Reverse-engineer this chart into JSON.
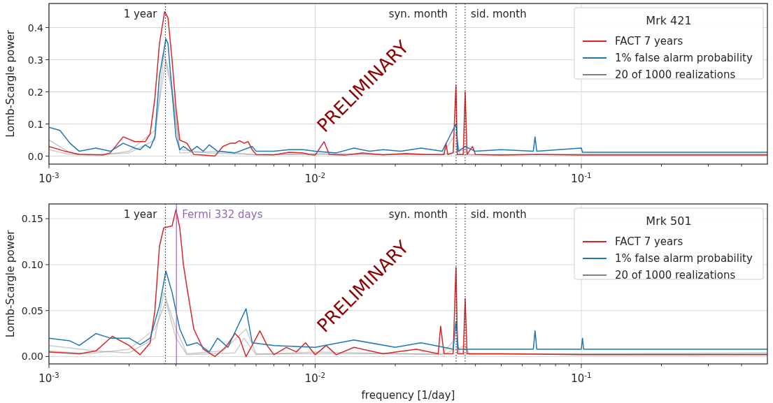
{
  "chart_data": [
    {
      "type": "line",
      "ylabel": "Lomb-Scargle power",
      "legend_title": "Mrk 421",
      "legend": "top right",
      "log": "x",
      "grid": true,
      "line_style": "solid",
      "xlim": [
        0.001,
        0.5
      ],
      "ylim": [
        -0.025,
        0.475
      ],
      "xticks": [
        {
          "value": 0.001,
          "label": "10$^{-3}$"
        },
        {
          "value": 0.002,
          "label": null
        },
        {
          "value": 0.003,
          "label": null
        },
        {
          "value": 0.004,
          "label": null
        },
        {
          "value": 0.005,
          "label": null
        },
        {
          "value": 0.006,
          "label": null
        },
        {
          "value": 0.007,
          "label": null
        },
        {
          "value": 0.008,
          "label": null
        },
        {
          "value": 0.009,
          "label": null
        },
        {
          "value": 0.01,
          "label": "10$^{-2}$"
        },
        {
          "value": 0.02,
          "label": null
        },
        {
          "value": 0.03,
          "label": null
        },
        {
          "value": 0.04,
          "label": null
        },
        {
          "value": 0.05,
          "label": null
        },
        {
          "value": 0.06,
          "label": null
        },
        {
          "value": 0.07,
          "label": null
        },
        {
          "value": 0.08,
          "label": null
        },
        {
          "value": 0.09,
          "label": null
        },
        {
          "value": 0.1,
          "label": "10$^{-1}$"
        },
        {
          "value": 0.2,
          "label": null
        },
        {
          "value": 0.3,
          "label": null
        },
        {
          "value": 0.4,
          "label": null
        }
      ],
      "yticks": [
        {
          "value": 0,
          "label": "0.0"
        },
        0.1,
        0.2,
        0.3,
        0.4
      ],
      "ref_lines": [
        {
          "axis": "x",
          "value": 0.002738,
          "label": "1 year",
          "color": "#333333",
          "line_style": "dotted"
        },
        {
          "axis": "x",
          "value": 0.03386,
          "label": "syn. month",
          "color": "#333333",
          "line_style": "dotted"
        },
        {
          "axis": "x",
          "value": 0.0366,
          "label": "sid. month",
          "color": "#333333",
          "line_style": "dotted"
        }
      ],
      "annotations": [
        "PRELIMINARY"
      ],
      "series": [
        {
          "name": "20 of 1000 realizations",
          "color": "#7f7f7f",
          "x": [
            0.001,
            0.0012,
            0.0015,
            0.002,
            0.0025,
            0.0027,
            0.0029,
            0.0031,
            0.004,
            0.006,
            0.01,
            0.03,
            0.0338,
            0.035,
            0.1,
            0.5
          ],
          "values": [
            0.05,
            0.01,
            0.005,
            0.01,
            0.05,
            0.32,
            0.2,
            0.02,
            0.01,
            0.005,
            0.005,
            0.005,
            0.07,
            0.005,
            0.005,
            0.005
          ]
        },
        {
          "color": "#7f7f7f",
          "x": [
            0.001,
            0.0012,
            0.0016,
            0.002,
            0.0025,
            0.00275,
            0.0029,
            0.0031,
            0.0045,
            0.006,
            0.01,
            0.03,
            0.0366,
            0.038,
            0.1,
            0.5
          ],
          "values": [
            0.02,
            0.005,
            0.003,
            0.015,
            0.08,
            0.3,
            0.22,
            0.01,
            0.015,
            0.003,
            0.008,
            0.004,
            0.02,
            0.004,
            0.006,
            0.006
          ]
        },
        {
          "name": "FACT 7 years",
          "color": "#d62728",
          "x": [
            0.001,
            0.00115,
            0.0013,
            0.0016,
            0.0017,
            0.0019,
            0.0021,
            0.0023,
            0.0024,
            0.0025,
            0.0026,
            0.00272,
            0.0028,
            0.0029,
            0.003,
            0.0031,
            0.0033,
            0.0035,
            0.0038,
            0.0042,
            0.0045,
            0.0048,
            0.005,
            0.0052,
            0.0054,
            0.0056,
            0.0058,
            0.006,
            0.007,
            0.008,
            0.009,
            0.0095,
            0.01,
            0.0108,
            0.0113,
            0.013,
            0.015,
            0.018,
            0.022,
            0.026,
            0.0305,
            0.031,
            0.0315,
            0.033,
            0.0338,
            0.0342,
            0.036,
            0.0366,
            0.0372,
            0.039,
            0.04,
            0.05,
            0.07,
            0.1,
            0.2,
            0.5
          ],
          "values": [
            0.03,
            0.015,
            0.005,
            0.004,
            0.01,
            0.06,
            0.045,
            0.045,
            0.07,
            0.18,
            0.35,
            0.45,
            0.43,
            0.3,
            0.15,
            0.05,
            0.04,
            0.005,
            0.003,
            0.0,
            0.03,
            0.04,
            0.04,
            0.048,
            0.04,
            0.045,
            0.02,
            0.005,
            0.004,
            0.012,
            0.01,
            0.005,
            0.003,
            0.045,
            0.005,
            0.003,
            0.01,
            0.004,
            0.008,
            0.005,
            0.005,
            0.04,
            0.005,
            0.01,
            0.22,
            0.005,
            0.005,
            0.2,
            0.005,
            0.03,
            0.005,
            0.003,
            0.005,
            0.003,
            0.003,
            0.003
          ]
        },
        {
          "name": "1% false alarm probability",
          "color": "#1f77b4",
          "x": [
            0.001,
            0.0011,
            0.0012,
            0.0013,
            0.0015,
            0.0017,
            0.0019,
            0.0021,
            0.0022,
            0.0023,
            0.0024,
            0.0025,
            0.0026,
            0.00275,
            0.0028,
            0.0029,
            0.003,
            0.0031,
            0.0032,
            0.0034,
            0.0036,
            0.0038,
            0.004,
            0.0043,
            0.005,
            0.0058,
            0.006,
            0.007,
            0.008,
            0.009,
            0.01,
            0.012,
            0.014,
            0.016,
            0.018,
            0.021,
            0.025,
            0.03,
            0.0338,
            0.0345,
            0.0366,
            0.04,
            0.05,
            0.066,
            0.067,
            0.068,
            0.1,
            0.101,
            0.2,
            0.5
          ],
          "values": [
            0.09,
            0.08,
            0.04,
            0.015,
            0.025,
            0.015,
            0.04,
            0.025,
            0.02,
            0.035,
            0.025,
            0.06,
            0.25,
            0.365,
            0.35,
            0.2,
            0.06,
            0.02,
            0.03,
            0.015,
            0.03,
            0.015,
            0.035,
            0.015,
            0.01,
            0.03,
            0.015,
            0.015,
            0.02,
            0.02,
            0.015,
            0.01,
            0.025,
            0.015,
            0.02,
            0.015,
            0.025,
            0.015,
            0.1,
            0.015,
            0.03,
            0.015,
            0.02,
            0.015,
            0.06,
            0.015,
            0.025,
            0.012,
            0.012,
            0.012
          ]
        }
      ]
    },
    {
      "type": "line",
      "xlabel": "frequency [1/day]",
      "ylabel": "Lomb-Scargle power",
      "legend_title": "Mrk 501",
      "legend": "top right",
      "log": "x",
      "grid": true,
      "line_style": "solid",
      "xlim": [
        0.001,
        0.5
      ],
      "ylim": [
        -0.008,
        0.166
      ],
      "xticks": [
        {
          "value": 0.001,
          "label": "10$^{-3}$"
        },
        {
          "value": 0.002,
          "label": null
        },
        {
          "value": 0.003,
          "label": null
        },
        {
          "value": 0.004,
          "label": null
        },
        {
          "value": 0.005,
          "label": null
        },
        {
          "value": 0.006,
          "label": null
        },
        {
          "value": 0.007,
          "label": null
        },
        {
          "value": 0.008,
          "label": null
        },
        {
          "value": 0.009,
          "label": null
        },
        {
          "value": 0.01,
          "label": "10$^{-2}$"
        },
        {
          "value": 0.02,
          "label": null
        },
        {
          "value": 0.03,
          "label": null
        },
        {
          "value": 0.04,
          "label": null
        },
        {
          "value": 0.05,
          "label": null
        },
        {
          "value": 0.06,
          "label": null
        },
        {
          "value": 0.07,
          "label": null
        },
        {
          "value": 0.08,
          "label": null
        },
        {
          "value": 0.09,
          "label": null
        },
        {
          "value": 0.1,
          "label": "10$^{-1}$"
        },
        {
          "value": 0.2,
          "label": null
        },
        {
          "value": 0.3,
          "label": null
        },
        {
          "value": 0.4,
          "label": null
        }
      ],
      "yticks": [
        {
          "value": 0,
          "label": "0.00"
        },
        {
          "value": 0.05,
          "label": "0.05"
        },
        {
          "value": 0.1,
          "label": "0.10"
        },
        {
          "value": 0.15,
          "label": "0.15"
        }
      ],
      "ref_lines": [
        {
          "axis": "x",
          "value": 0.002738,
          "label": "1 year",
          "color": "#333333",
          "line_style": "dotted"
        },
        {
          "axis": "x",
          "value": 0.003012,
          "label": "Fermi 332 days",
          "color": "#9467bd",
          "line_style": "solid"
        },
        {
          "axis": "x",
          "value": 0.03386,
          "label": "syn. month",
          "color": "#333333",
          "line_style": "dotted"
        },
        {
          "axis": "x",
          "value": 0.0366,
          "label": "sid. month",
          "color": "#333333",
          "line_style": "dotted"
        }
      ],
      "annotations": [
        "PRELIMINARY"
      ],
      "series": [
        {
          "name": "20 of 1000 realizations",
          "color": "#7f7f7f",
          "x": [
            0.001,
            0.0015,
            0.002,
            0.0025,
            0.0027,
            0.003,
            0.0033,
            0.0045,
            0.0055,
            0.006,
            0.01,
            0.03,
            0.0338,
            0.035,
            0.5
          ],
          "values": [
            0.012,
            0.006,
            0.004,
            0.02,
            0.07,
            0.03,
            0.003,
            0.006,
            0.03,
            0.003,
            0.003,
            0.003,
            0.02,
            0.003,
            0.003
          ]
        },
        {
          "color": "#7f7f7f",
          "x": [
            0.001,
            0.0014,
            0.002,
            0.0025,
            0.00275,
            0.003,
            0.0033,
            0.005,
            0.0054,
            0.006,
            0.01,
            0.03,
            0.0366,
            0.038,
            0.5
          ],
          "values": [
            0.006,
            0.003,
            0.008,
            0.03,
            0.06,
            0.02,
            0.002,
            0.004,
            0.02,
            0.002,
            0.005,
            0.002,
            0.012,
            0.002,
            0.004
          ]
        },
        {
          "name": "FACT 7 years",
          "color": "#d62728",
          "x": [
            0.001,
            0.0013,
            0.0015,
            0.00173,
            0.002,
            0.0022,
            0.0024,
            0.0025,
            0.0026,
            0.0027,
            0.0029,
            0.003,
            0.0031,
            0.0032,
            0.0033,
            0.0035,
            0.0038,
            0.0042,
            0.0046,
            0.005,
            0.0052,
            0.0055,
            0.006,
            0.0062,
            0.0066,
            0.007,
            0.0078,
            0.0085,
            0.0092,
            0.01,
            0.011,
            0.012,
            0.014,
            0.018,
            0.024,
            0.029,
            0.0296,
            0.0305,
            0.033,
            0.0338,
            0.0343,
            0.036,
            0.0366,
            0.0372,
            0.05,
            0.1,
            0.5
          ],
          "values": [
            0.005,
            0.003,
            0.006,
            0.022,
            0.012,
            0.002,
            0.015,
            0.05,
            0.12,
            0.14,
            0.142,
            0.16,
            0.14,
            0.1,
            0.075,
            0.03,
            0.008,
            0.0,
            0.01,
            0.025,
            0.02,
            0.0,
            0.02,
            0.028,
            0.012,
            0.002,
            0.01,
            0.005,
            0.015,
            0.002,
            0.012,
            0.002,
            0.01,
            0.003,
            0.008,
            0.003,
            0.033,
            0.003,
            0.003,
            0.097,
            0.003,
            0.003,
            0.063,
            0.003,
            0.003,
            0.002,
            0.002
          ]
        },
        {
          "name": "1% false alarm probability",
          "color": "#1f77b4",
          "x": [
            0.001,
            0.0012,
            0.0013,
            0.0015,
            0.0017,
            0.002,
            0.0022,
            0.0024,
            0.0026,
            0.00275,
            0.0029,
            0.0031,
            0.0033,
            0.0036,
            0.004,
            0.0043,
            0.0047,
            0.0055,
            0.0058,
            0.007,
            0.01,
            0.014,
            0.02,
            0.025,
            0.033,
            0.0338,
            0.0345,
            0.05,
            0.066,
            0.067,
            0.068,
            0.1,
            0.101,
            0.102,
            0.5
          ],
          "values": [
            0.02,
            0.017,
            0.012,
            0.025,
            0.02,
            0.02,
            0.013,
            0.02,
            0.055,
            0.093,
            0.07,
            0.03,
            0.012,
            0.015,
            0.005,
            0.02,
            0.01,
            0.052,
            0.015,
            0.012,
            0.01,
            0.018,
            0.01,
            0.015,
            0.008,
            0.038,
            0.008,
            0.008,
            0.008,
            0.028,
            0.008,
            0.008,
            0.02,
            0.008,
            0.008
          ]
        }
      ]
    }
  ]
}
